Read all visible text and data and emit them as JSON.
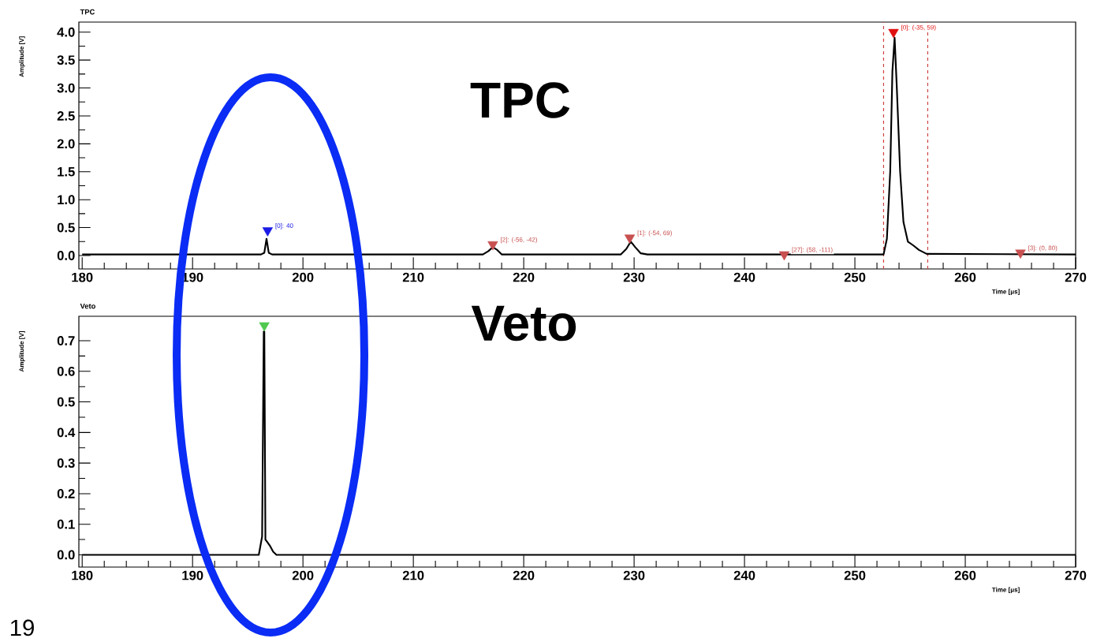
{
  "chart_data": [
    {
      "type": "line",
      "title": "TPC",
      "xlabel": "Time [μs]",
      "ylabel": "Amplitude [V]",
      "xlim": [
        179.7,
        270
      ],
      "ylim": [
        -0.24,
        4.18
      ],
      "xticks": [
        180,
        190,
        200,
        210,
        220,
        230,
        240,
        250,
        260,
        270
      ],
      "yticks": [
        {
          "value": 0,
          "label": "0.0"
        },
        {
          "value": 0.5,
          "label": "0.5"
        },
        {
          "value": 1,
          "label": "1.0"
        },
        {
          "value": 1.5,
          "label": "1.5"
        },
        {
          "value": 2,
          "label": "2.0"
        },
        {
          "value": 2.5,
          "label": "2.5"
        },
        {
          "value": 3,
          "label": "3.0"
        },
        {
          "value": 3.5,
          "label": "3.5"
        },
        {
          "value": 4,
          "label": "4.0"
        }
      ],
      "series": [
        {
          "color": "#000000",
          "x": [
            180,
            196.2,
            196.5,
            196.7,
            196.9,
            197.2,
            216.3,
            216.8,
            217.2,
            217.6,
            218.0,
            228.8,
            229.3,
            229.7,
            230.1,
            230.6,
            231.2,
            252.6,
            252.9,
            253.2,
            253.4,
            253.6,
            253.8,
            254.1,
            254.4,
            254.8,
            255.3,
            255.8,
            256.5,
            270
          ],
          "values": [
            0.02,
            0.02,
            0.05,
            0.3,
            0.05,
            0.02,
            0.02,
            0.08,
            0.15,
            0.1,
            0.02,
            0.02,
            0.12,
            0.25,
            0.15,
            0.04,
            0.02,
            0.02,
            0.3,
            1.5,
            3.3,
            3.9,
            3.0,
            1.5,
            0.6,
            0.25,
            0.18,
            0.1,
            0.03,
            0.02
          ]
        },
        {
          "type": "scatter",
          "marker": "triangle",
          "x": [
            196.8,
            217.2,
            229.6,
            243.6,
            253.5,
            265
          ],
          "values": [
            0.45,
            0.2,
            0.32,
            0.02,
            4.0,
            0.05
          ],
          "colors": [
            "#1a1ae6",
            "#c85050",
            "#c85050",
            "#c85050",
            "#e01010",
            "#c85050"
          ],
          "value_labels": [
            "[0]: 40",
            "[2]: (-56, -42)",
            "[1]: (-54, 69)",
            "[27]: (58, -111)",
            "[0]: (-35, 59)",
            "[3]: (0, 80)"
          ]
        }
      ],
      "ref_lines": [
        {
          "axis": "x",
          "value": 252.6,
          "color": "#d04040",
          "line_style": "dashed"
        },
        {
          "axis": "x",
          "value": 256.6,
          "color": "#d04040",
          "line_style": "dashed"
        }
      ],
      "annotations": [
        "TPC"
      ]
    },
    {
      "type": "line",
      "title": "Veto",
      "xlabel": "Time [μs]",
      "ylabel": "Amplitude [V]",
      "xlim": [
        179.7,
        270
      ],
      "ylim": [
        -0.04,
        0.78
      ],
      "xticks": [
        180,
        190,
        200,
        210,
        220,
        230,
        240,
        250,
        260,
        270
      ],
      "yticks": [
        {
          "value": 0,
          "label": "0.0"
        },
        {
          "value": 0.1,
          "label": "0.1"
        },
        {
          "value": 0.2,
          "label": "0.2"
        },
        {
          "value": 0.3,
          "label": "0.3"
        },
        {
          "value": 0.4,
          "label": "0.4"
        },
        {
          "value": 0.5,
          "label": "0.5"
        },
        {
          "value": 0.6,
          "label": "0.6"
        },
        {
          "value": 0.7,
          "label": "0.7"
        }
      ],
      "series": [
        {
          "color": "#000000",
          "x": [
            180,
            196.0,
            196.3,
            196.45,
            196.5,
            196.6,
            196.8,
            197.0,
            197.3,
            197.6,
            270
          ],
          "values": [
            0,
            0,
            0.06,
            0.73,
            0.73,
            0.05,
            0.04,
            0.03,
            0.01,
            0,
            0
          ]
        },
        {
          "type": "scatter",
          "marker": "triangle",
          "x": [
            196.5
          ],
          "values": [
            0.75
          ],
          "colors": [
            "#50c850"
          ]
        }
      ],
      "annotations": [
        "Veto",
        "19"
      ]
    }
  ]
}
